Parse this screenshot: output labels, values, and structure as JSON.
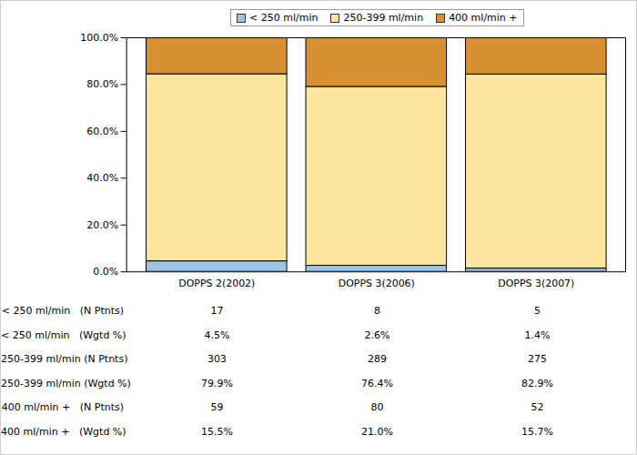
{
  "chart_data": {
    "type": "bar",
    "stacked": true,
    "legend": "top",
    "categories": [
      "DOPPS 2(2002)",
      "DOPPS 3(2006)",
      "DOPPS 3(2007)"
    ],
    "series": [
      {
        "name": "< 250 ml/min",
        "color": "#9dc3e6",
        "values": [
          4.5,
          2.6,
          1.4
        ],
        "value_labels": [
          "4.5%",
          "2.6%",
          "1.4%"
        ],
        "pct_row_label": "< 250 ml/min   (Wgtd %)",
        "n_row_label": "< 250 ml/min   (N Ptnts)",
        "n_patients": [
          17,
          8,
          5
        ]
      },
      {
        "name": "250-399 ml/min",
        "color": "#fce59c",
        "values": [
          79.9,
          76.4,
          82.9
        ],
        "value_labels": [
          "79.9%",
          "76.4%",
          "82.9%"
        ],
        "pct_row_label": "250-399 ml/min (Wgtd %)",
        "n_row_label": "250-399 ml/min (N Ptnts)",
        "n_patients": [
          303,
          289,
          275
        ]
      },
      {
        "name": "400 ml/min +",
        "color": "#d99030",
        "values": [
          15.5,
          21.0,
          15.7
        ],
        "value_labels": [
          "15.5%",
          "21.0%",
          "15.7%"
        ],
        "pct_row_label": "400 ml/min +   (Wgtd %)",
        "n_row_label": "400 ml/min +   (N Ptnts)",
        "n_patients": [
          59,
          80,
          52
        ]
      }
    ],
    "ylim": [
      0,
      100
    ],
    "yticks": [
      {
        "value": 0,
        "label": "0.0%"
      },
      {
        "value": 20,
        "label": "20.0%"
      },
      {
        "value": 40,
        "label": "40.0%"
      },
      {
        "value": 60,
        "label": "60.0%"
      },
      {
        "value": 80,
        "label": "80.0%"
      },
      {
        "value": 100,
        "label": "100.0%"
      }
    ]
  }
}
